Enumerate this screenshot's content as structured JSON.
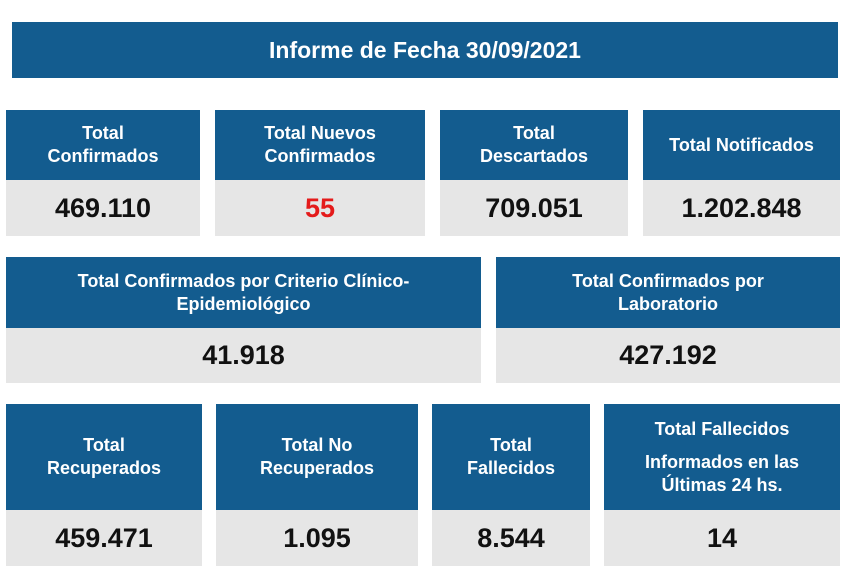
{
  "header": {
    "title": "Informe de Fecha 30/09/2021"
  },
  "rows": [
    {
      "cards": [
        {
          "label": [
            "Total",
            "Confirmados"
          ],
          "value": "469.110"
        },
        {
          "label": [
            "Total Nuevos",
            "Confirmados"
          ],
          "value": "55"
        },
        {
          "label": [
            "Total",
            "Descartados"
          ],
          "value": "709.051"
        },
        {
          "label": [
            "Total Notificados"
          ],
          "value": "1.202.848"
        }
      ]
    },
    {
      "cards": [
        {
          "label": [
            "Total Confirmados por Criterio Clínico-",
            "Epidemiológico"
          ],
          "value": "41.918"
        },
        {
          "label": [
            "Total Confirmados por",
            "Laboratorio"
          ],
          "value": "427.192"
        }
      ]
    },
    {
      "cards": [
        {
          "label": [
            "Total",
            "Recuperados"
          ],
          "value": "459.471"
        },
        {
          "label": [
            "Total No",
            "Recuperados"
          ],
          "value": "1.095"
        },
        {
          "label": [
            "Total",
            "Fallecidos"
          ],
          "value": "8.544"
        },
        {
          "label": [
            "Total Fallecidos",
            "Informados en las",
            "Últimas 24 hs."
          ],
          "value": "14"
        }
      ]
    }
  ]
}
